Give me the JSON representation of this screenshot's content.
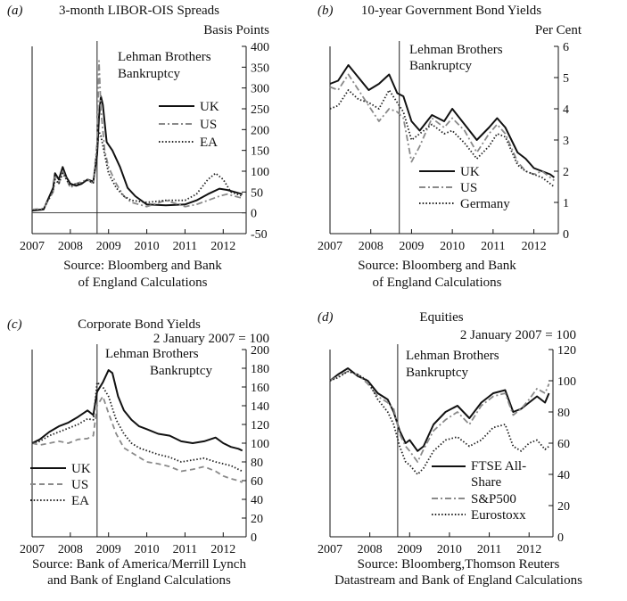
{
  "chart_data": [
    {
      "panel": "(a)",
      "type": "line",
      "title": "3-month LIBOR-OIS Spreads",
      "ylabel": "Basis Points",
      "yaxis_side": "right",
      "ylim": [
        -50,
        400
      ],
      "yticks": [
        400,
        350,
        300,
        250,
        200,
        150,
        100,
        50,
        0,
        -50
      ],
      "xlim": [
        2007,
        2012.6
      ],
      "xticks": [
        "2007",
        "2008",
        "2009",
        "2010",
        "2011",
        "2012"
      ],
      "zero_line": true,
      "event_line_x": 2008.7,
      "annotation": [
        "Lehman Brothers",
        "Bankruptcy"
      ],
      "legend_position": "center-right",
      "source": [
        "Source:  Bloomberg and Bank",
        "of England Calculations"
      ],
      "series": [
        {
          "name": "UK",
          "style": "solid",
          "color": "#111111",
          "x": [
            2007.0,
            2007.3,
            2007.55,
            2007.6,
            2007.7,
            2007.8,
            2007.9,
            2008.0,
            2008.15,
            2008.3,
            2008.45,
            2008.6,
            2008.7,
            2008.75,
            2008.8,
            2008.85,
            2008.95,
            2009.1,
            2009.3,
            2009.5,
            2009.7,
            2010.0,
            2010.5,
            2011.0,
            2011.3,
            2011.6,
            2011.9,
            2012.1,
            2012.3,
            2012.5
          ],
          "y": [
            5,
            8,
            60,
            95,
            80,
            110,
            85,
            70,
            65,
            70,
            80,
            75,
            140,
            230,
            280,
            260,
            170,
            150,
            110,
            60,
            40,
            20,
            18,
            20,
            30,
            45,
            58,
            55,
            50,
            45
          ]
        },
        {
          "name": "US",
          "style": "dashdot",
          "color": "#8a8a8a",
          "x": [
            2007.0,
            2007.3,
            2007.55,
            2007.6,
            2007.7,
            2007.8,
            2007.9,
            2008.0,
            2008.15,
            2008.3,
            2008.45,
            2008.6,
            2008.7,
            2008.75,
            2008.8,
            2008.9,
            2009.0,
            2009.2,
            2009.4,
            2009.6,
            2010.0,
            2010.5,
            2011.0,
            2011.3,
            2011.6,
            2011.9,
            2012.1,
            2012.3,
            2012.5
          ],
          "y": [
            8,
            10,
            50,
            90,
            70,
            100,
            80,
            60,
            70,
            75,
            80,
            70,
            170,
            365,
            250,
            150,
            110,
            70,
            40,
            25,
            15,
            30,
            15,
            20,
            30,
            40,
            45,
            40,
            35
          ]
        },
        {
          "name": "EA",
          "style": "dotted",
          "color": "#222222",
          "x": [
            2007.0,
            2007.3,
            2007.55,
            2007.6,
            2007.7,
            2007.8,
            2007.9,
            2008.0,
            2008.15,
            2008.3,
            2008.45,
            2008.6,
            2008.7,
            2008.75,
            2008.8,
            2008.9,
            2009.0,
            2009.2,
            2009.4,
            2009.6,
            2010.0,
            2010.5,
            2011.0,
            2011.3,
            2011.6,
            2011.8,
            2012.0,
            2012.2,
            2012.5
          ],
          "y": [
            6,
            9,
            55,
            80,
            70,
            95,
            80,
            65,
            70,
            72,
            78,
            72,
            150,
            195,
            185,
            140,
            95,
            60,
            40,
            30,
            25,
            30,
            30,
            45,
            80,
            95,
            80,
            50,
            40
          ]
        }
      ]
    },
    {
      "panel": "(b)",
      "type": "line",
      "title": "10-year Government Bond Yields",
      "ylabel": "Per Cent",
      "yaxis_side": "right",
      "ylim": [
        0,
        6
      ],
      "yticks": [
        6,
        5,
        4,
        3,
        2,
        1,
        0
      ],
      "xlim": [
        2007,
        2012.6
      ],
      "xticks": [
        "2007",
        "2008",
        "2009",
        "2010",
        "2011",
        "2012"
      ],
      "zero_line": false,
      "event_line_x": 2008.7,
      "annotation": [
        "Lehman Brothers",
        "Bankruptcy"
      ],
      "legend_position": "bottom-center",
      "source": [
        "Source:  Bloomberg and Bank",
        "of England Calculations"
      ],
      "series": [
        {
          "name": "UK",
          "style": "solid",
          "color": "#111111",
          "x": [
            2007.0,
            2007.2,
            2007.45,
            2007.7,
            2007.95,
            2008.2,
            2008.45,
            2008.65,
            2008.8,
            2009.0,
            2009.2,
            2009.5,
            2009.8,
            2010.0,
            2010.3,
            2010.6,
            2010.9,
            2011.1,
            2011.3,
            2011.6,
            2011.8,
            2012.0,
            2012.2,
            2012.4,
            2012.5
          ],
          "y": [
            4.8,
            4.9,
            5.4,
            5.0,
            4.6,
            4.8,
            5.1,
            4.5,
            4.4,
            3.6,
            3.3,
            3.8,
            3.6,
            4.0,
            3.5,
            3.0,
            3.4,
            3.7,
            3.4,
            2.6,
            2.4,
            2.1,
            2.0,
            1.9,
            1.8
          ]
        },
        {
          "name": "US",
          "style": "dashdot",
          "color": "#8a8a8a",
          "x": [
            2007.0,
            2007.2,
            2007.45,
            2007.7,
            2007.95,
            2008.2,
            2008.45,
            2008.65,
            2008.8,
            2009.0,
            2009.2,
            2009.5,
            2009.8,
            2010.0,
            2010.3,
            2010.6,
            2010.9,
            2011.1,
            2011.3,
            2011.6,
            2011.8,
            2012.0,
            2012.2,
            2012.4,
            2012.5
          ],
          "y": [
            4.7,
            4.6,
            5.1,
            4.6,
            4.1,
            3.6,
            4.0,
            3.9,
            3.7,
            2.3,
            2.8,
            3.7,
            3.4,
            3.7,
            3.3,
            2.6,
            3.2,
            3.5,
            3.2,
            2.3,
            2.0,
            1.9,
            2.0,
            1.8,
            1.7
          ]
        },
        {
          "name": "Germany",
          "style": "dotted",
          "color": "#222222",
          "x": [
            2007.0,
            2007.2,
            2007.45,
            2007.7,
            2007.95,
            2008.2,
            2008.45,
            2008.65,
            2008.8,
            2009.0,
            2009.2,
            2009.5,
            2009.8,
            2010.0,
            2010.3,
            2010.6,
            2010.9,
            2011.1,
            2011.3,
            2011.6,
            2011.8,
            2012.0,
            2012.2,
            2012.4,
            2012.5
          ],
          "y": [
            4.0,
            4.1,
            4.6,
            4.3,
            4.2,
            4.0,
            4.6,
            4.2,
            3.9,
            3.0,
            3.2,
            3.5,
            3.2,
            3.3,
            2.9,
            2.4,
            2.8,
            3.2,
            3.1,
            2.2,
            2.0,
            1.9,
            1.8,
            1.6,
            1.5
          ]
        }
      ]
    },
    {
      "panel": "(c)",
      "type": "line",
      "title": "Corporate Bond Yields",
      "ylabel": "2 January 2007 = 100",
      "yaxis_side": "right",
      "ylim": [
        0,
        200
      ],
      "yticks": [
        200,
        180,
        160,
        140,
        120,
        100,
        80,
        60,
        40,
        20,
        0
      ],
      "xlim": [
        2007,
        2012.6
      ],
      "xticks": [
        "2007",
        "2008",
        "2009",
        "2010",
        "2011",
        "2012"
      ],
      "zero_line": false,
      "event_line_x": 2008.7,
      "annotation": [
        "Lehman Brothers",
        "Bankruptcy"
      ],
      "legend_position": "bottom-left",
      "source": [
        "Source:  Bank of America/Merrill Lynch",
        "and Bank of England Calculations"
      ],
      "series": [
        {
          "name": "UK",
          "style": "solid",
          "color": "#111111",
          "x": [
            2007.0,
            2007.2,
            2007.45,
            2007.7,
            2007.95,
            2008.2,
            2008.45,
            2008.6,
            2008.7,
            2008.85,
            2009.0,
            2009.1,
            2009.25,
            2009.4,
            2009.6,
            2009.8,
            2010.0,
            2010.3,
            2010.6,
            2010.9,
            2011.2,
            2011.5,
            2011.8,
            2012.0,
            2012.2,
            2012.4,
            2012.5
          ],
          "y": [
            100,
            104,
            112,
            118,
            122,
            128,
            135,
            130,
            155,
            165,
            178,
            175,
            150,
            135,
            125,
            118,
            115,
            110,
            108,
            102,
            100,
            102,
            106,
            100,
            96,
            94,
            92
          ]
        },
        {
          "name": "US",
          "style": "dashed",
          "color": "#8a8a8a",
          "x": [
            2007.0,
            2007.2,
            2007.45,
            2007.7,
            2007.95,
            2008.2,
            2008.45,
            2008.6,
            2008.7,
            2008.85,
            2009.0,
            2009.2,
            2009.4,
            2009.6,
            2009.8,
            2010.0,
            2010.3,
            2010.6,
            2010.9,
            2011.2,
            2011.5,
            2011.8,
            2012.0,
            2012.2,
            2012.4,
            2012.5
          ],
          "y": [
            100,
            98,
            100,
            102,
            100,
            104,
            105,
            108,
            140,
            150,
            132,
            110,
            95,
            90,
            85,
            80,
            78,
            75,
            70,
            72,
            75,
            70,
            65,
            62,
            60,
            58
          ]
        },
        {
          "name": "EA",
          "style": "dotted",
          "color": "#222222",
          "x": [
            2007.0,
            2007.2,
            2007.45,
            2007.7,
            2007.95,
            2008.2,
            2008.45,
            2008.6,
            2008.7,
            2008.85,
            2009.0,
            2009.2,
            2009.4,
            2009.6,
            2009.8,
            2010.0,
            2010.3,
            2010.6,
            2010.9,
            2011.2,
            2011.5,
            2011.8,
            2012.0,
            2012.2,
            2012.4,
            2012.5
          ],
          "y": [
            100,
            102,
            108,
            112,
            116,
            120,
            126,
            125,
            165,
            160,
            150,
            125,
            110,
            100,
            95,
            92,
            88,
            85,
            80,
            82,
            84,
            80,
            78,
            76,
            72,
            70
          ]
        }
      ]
    },
    {
      "panel": "(d)",
      "type": "line",
      "title": "Equities",
      "ylabel": "2 January 2007 = 100",
      "yaxis_side": "right",
      "ylim": [
        0,
        120
      ],
      "yticks": [
        120,
        100,
        80,
        60,
        40,
        20,
        0
      ],
      "xlim": [
        2007,
        2012.6
      ],
      "xticks": [
        "2007",
        "2008",
        "2009",
        "2010",
        "2011",
        "2012"
      ],
      "zero_line": false,
      "event_line_x": 2008.7,
      "annotation": [
        "Lehman Brothers",
        "Bankruptcy"
      ],
      "legend_position": "bottom-right",
      "source": [
        "Source:  Bloomberg,Thomson Reuters",
        "Datastream and Bank of England Calculations"
      ],
      "series": [
        {
          "name": "FTSE All-Share",
          "style": "solid",
          "color": "#111111",
          "x": [
            2007.0,
            2007.2,
            2007.45,
            2007.7,
            2007.95,
            2008.2,
            2008.45,
            2008.6,
            2008.75,
            2008.9,
            2009.0,
            2009.2,
            2009.35,
            2009.6,
            2009.9,
            2010.2,
            2010.5,
            2010.8,
            2011.1,
            2011.4,
            2011.6,
            2011.8,
            2012.0,
            2012.2,
            2012.4,
            2012.5
          ],
          "y": [
            100,
            104,
            108,
            103,
            100,
            92,
            88,
            80,
            68,
            60,
            62,
            55,
            58,
            72,
            80,
            84,
            76,
            86,
            92,
            94,
            80,
            82,
            86,
            90,
            86,
            92
          ]
        },
        {
          "name": "S&P500",
          "style": "dashdot",
          "color": "#8a8a8a",
          "x": [
            2007.0,
            2007.2,
            2007.45,
            2007.7,
            2007.95,
            2008.2,
            2008.45,
            2008.6,
            2008.75,
            2008.9,
            2009.0,
            2009.2,
            2009.35,
            2009.6,
            2009.9,
            2010.2,
            2010.5,
            2010.8,
            2011.1,
            2011.4,
            2011.6,
            2011.8,
            2012.0,
            2012.2,
            2012.4,
            2012.5
          ],
          "y": [
            100,
            103,
            106,
            104,
            98,
            90,
            86,
            82,
            66,
            58,
            55,
            48,
            56,
            68,
            75,
            80,
            72,
            84,
            90,
            92,
            78,
            82,
            88,
            95,
            92,
            98
          ]
        },
        {
          "name": "Eurostoxx",
          "style": "dotted",
          "color": "#222222",
          "x": [
            2007.0,
            2007.2,
            2007.45,
            2007.7,
            2007.95,
            2008.2,
            2008.45,
            2008.6,
            2008.75,
            2008.9,
            2009.0,
            2009.2,
            2009.35,
            2009.6,
            2009.9,
            2010.2,
            2010.5,
            2010.8,
            2011.1,
            2011.4,
            2011.6,
            2011.8,
            2012.0,
            2012.2,
            2012.4,
            2012.5
          ],
          "y": [
            100,
            102,
            106,
            104,
            100,
            88,
            80,
            72,
            58,
            48,
            46,
            40,
            44,
            55,
            62,
            64,
            58,
            62,
            70,
            72,
            58,
            55,
            60,
            62,
            56,
            58
          ]
        }
      ]
    }
  ]
}
